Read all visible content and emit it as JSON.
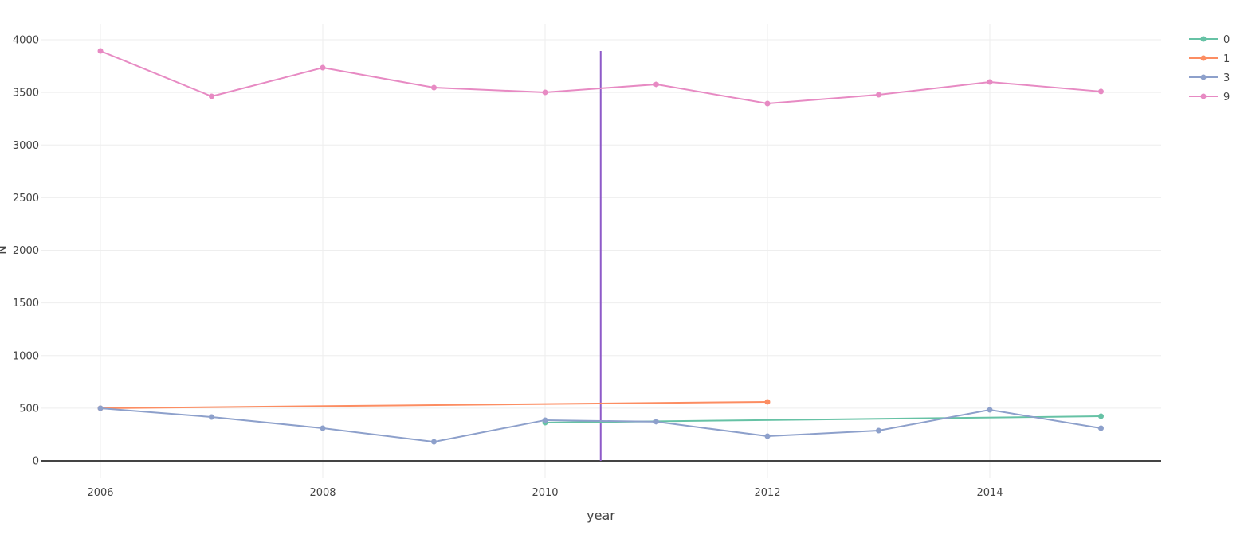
{
  "chart_data": {
    "type": "line",
    "title": "",
    "xlabel": "year",
    "ylabel": "N",
    "xlim": [
      2005.5,
      2015.55
    ],
    "ylim": [
      -220,
      4150
    ],
    "x_ticks": [
      2006,
      2008,
      2010,
      2012,
      2014
    ],
    "y_ticks": [
      0,
      500,
      1000,
      1500,
      2000,
      2500,
      3000,
      3500,
      4000
    ],
    "grid": true,
    "legend_position": "top-right",
    "series": [
      {
        "name": "0",
        "color": "#66c2a5",
        "x": [
          2010,
          2015
        ],
        "values": [
          363,
          423
        ]
      },
      {
        "name": "1",
        "color": "#fc8d62",
        "x": [
          2006,
          2012
        ],
        "values": [
          499,
          560
        ]
      },
      {
        "name": "3",
        "color": "#8da0cb",
        "x": [
          2006,
          2007,
          2008,
          2009,
          2010,
          2011,
          2012,
          2013,
          2014,
          2015
        ],
        "values": [
          499,
          416,
          310,
          181,
          386,
          371,
          234,
          287,
          484,
          310
        ]
      },
      {
        "name": "9",
        "color": "#e78ac3",
        "x": [
          2006,
          2007,
          2008,
          2009,
          2010,
          2011,
          2012,
          2013,
          2014,
          2015
        ],
        "values": [
          3894,
          3463,
          3735,
          3546,
          3501,
          3577,
          3395,
          3478,
          3599,
          3509
        ]
      }
    ],
    "annotations": [
      {
        "type": "vertical-line",
        "x": 2010.5,
        "y0": 0,
        "y1": 3894,
        "color": "#8e5ac8"
      }
    ]
  }
}
